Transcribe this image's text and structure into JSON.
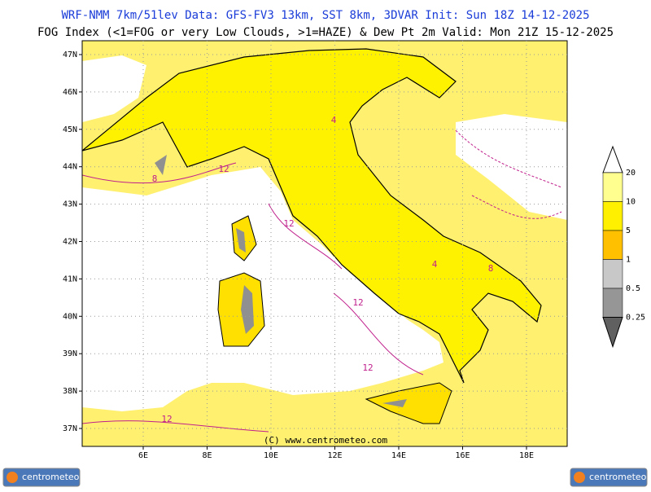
{
  "header": {
    "line1": "WRF-NMM 7km/51lev   Data: GFS-FV3 13km, SST 8km, 3DVAR   Init: Sun 18Z 14-12-2025",
    "line2": "FOG Index (<1=FOG or very Low Clouds, >1=HAZE) & Dew Pt 2m   Valid: Mon 21Z 15-12-2025"
  },
  "map": {
    "lat_labels": [
      "47N",
      "46N",
      "45N",
      "44N",
      "43N",
      "42N",
      "41N",
      "40N",
      "39N",
      "38N",
      "37N"
    ],
    "lon_labels": [
      "6E",
      "8E",
      "10E",
      "12E",
      "14E",
      "16E",
      "18E"
    ],
    "contour_labels": [
      "12",
      "12",
      "12",
      "12",
      "12",
      "8",
      "4",
      "8",
      "4"
    ],
    "copyright": "(C) www.centrometeo.com"
  },
  "legend": {
    "items": [
      {
        "label": "20",
        "color": "#ffff90"
      },
      {
        "label": "10",
        "color": "#fff000"
      },
      {
        "label": "5",
        "color": "#ffc000"
      },
      {
        "label": "1",
        "color": "#c8c8c8"
      },
      {
        "label": "0.5",
        "color": "#969696"
      },
      {
        "label": "0.25",
        "color": "#606060"
      }
    ]
  },
  "logos": [
    "centrometeo",
    "centrometeo"
  ]
}
